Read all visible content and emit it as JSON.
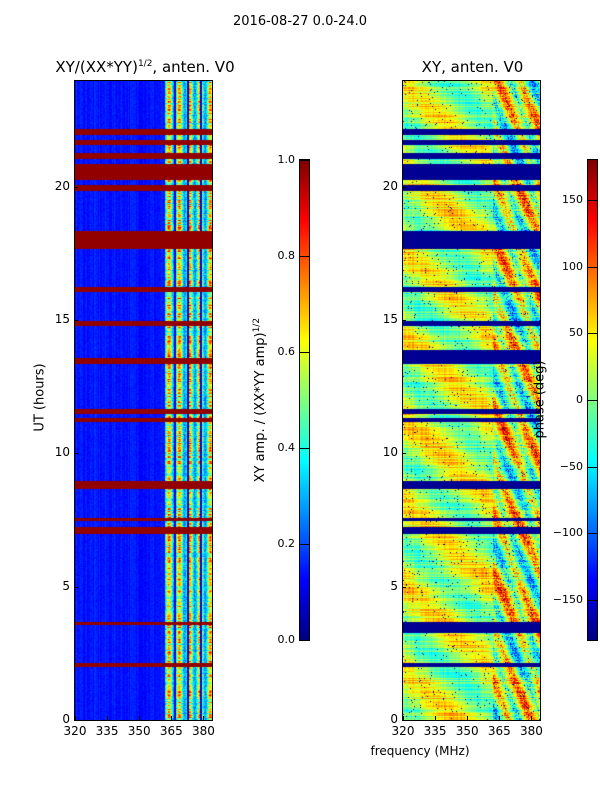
{
  "suptitle": "2016-08-27 0.0-24.0",
  "chart_data": [
    {
      "type": "heatmap",
      "title": "XY/(XX*YY)",
      "title_sup": "1/2",
      "title_suffix": ", anten. V0",
      "xlabel": "",
      "ylabel": "UT (hours)",
      "xlim": [
        320,
        384
      ],
      "ylim": [
        0,
        24
      ],
      "xticks": [
        "320",
        "335",
        "350",
        "365",
        "380"
      ],
      "yticks": [
        "0",
        "5",
        "10",
        "15",
        "20"
      ],
      "colormap": "jet",
      "clim": [
        0.0,
        1.0
      ],
      "colorbar_label": "XY amp. / (XX*YY amp)",
      "colorbar_label_sup": "1/2",
      "colorbar_ticks": [
        "0.0",
        "0.2",
        "0.4",
        "0.6",
        "0.8",
        "1.0"
      ],
      "background_level": 0.1,
      "active_band_mhz": [
        362,
        383
      ],
      "active_level": 0.45,
      "flagged_ut_hours": [
        [
          22.0,
          22.2
        ],
        [
          21.6,
          21.8
        ],
        [
          21.1,
          21.3
        ],
        [
          20.3,
          20.9
        ],
        [
          19.9,
          20.1
        ],
        [
          17.7,
          18.4
        ],
        [
          16.1,
          16.3
        ],
        [
          14.8,
          15.0
        ],
        [
          13.4,
          13.6
        ],
        [
          11.5,
          11.7
        ],
        [
          11.2,
          11.35
        ],
        [
          8.7,
          9.0
        ],
        [
          7.5,
          7.6
        ],
        [
          7.0,
          7.25
        ],
        [
          3.6,
          3.7
        ],
        [
          2.0,
          2.15
        ]
      ]
    },
    {
      "type": "heatmap",
      "title": "XY, anten. V0",
      "xlabel": "frequency (MHz)",
      "ylabel": "",
      "xlim": [
        320,
        384
      ],
      "ylim": [
        0,
        24
      ],
      "xticks": [
        "320",
        "335",
        "350",
        "365",
        "380"
      ],
      "yticks": [
        "0",
        "5",
        "10",
        "15",
        "20"
      ],
      "colormap": "jet",
      "clim": [
        -180,
        180
      ],
      "colorbar_label": "phase (deg)",
      "colorbar_ticks": [
        "−150",
        "−100",
        "−50",
        "0",
        "50",
        "100",
        "150"
      ],
      "typical_phase_deg": 20,
      "flagged_ut_hours": [
        [
          22.0,
          22.2
        ],
        [
          21.6,
          21.8
        ],
        [
          21.1,
          21.3
        ],
        [
          20.3,
          20.9
        ],
        [
          19.9,
          20.1
        ],
        [
          17.7,
          18.4
        ],
        [
          16.1,
          16.3
        ],
        [
          14.8,
          15.0
        ],
        [
          13.4,
          13.9
        ],
        [
          11.5,
          11.7
        ],
        [
          11.2,
          11.35
        ],
        [
          8.7,
          9.0
        ],
        [
          7.5,
          7.6
        ],
        [
          7.0,
          7.25
        ],
        [
          3.3,
          3.7
        ],
        [
          2.0,
          2.15
        ]
      ]
    }
  ]
}
